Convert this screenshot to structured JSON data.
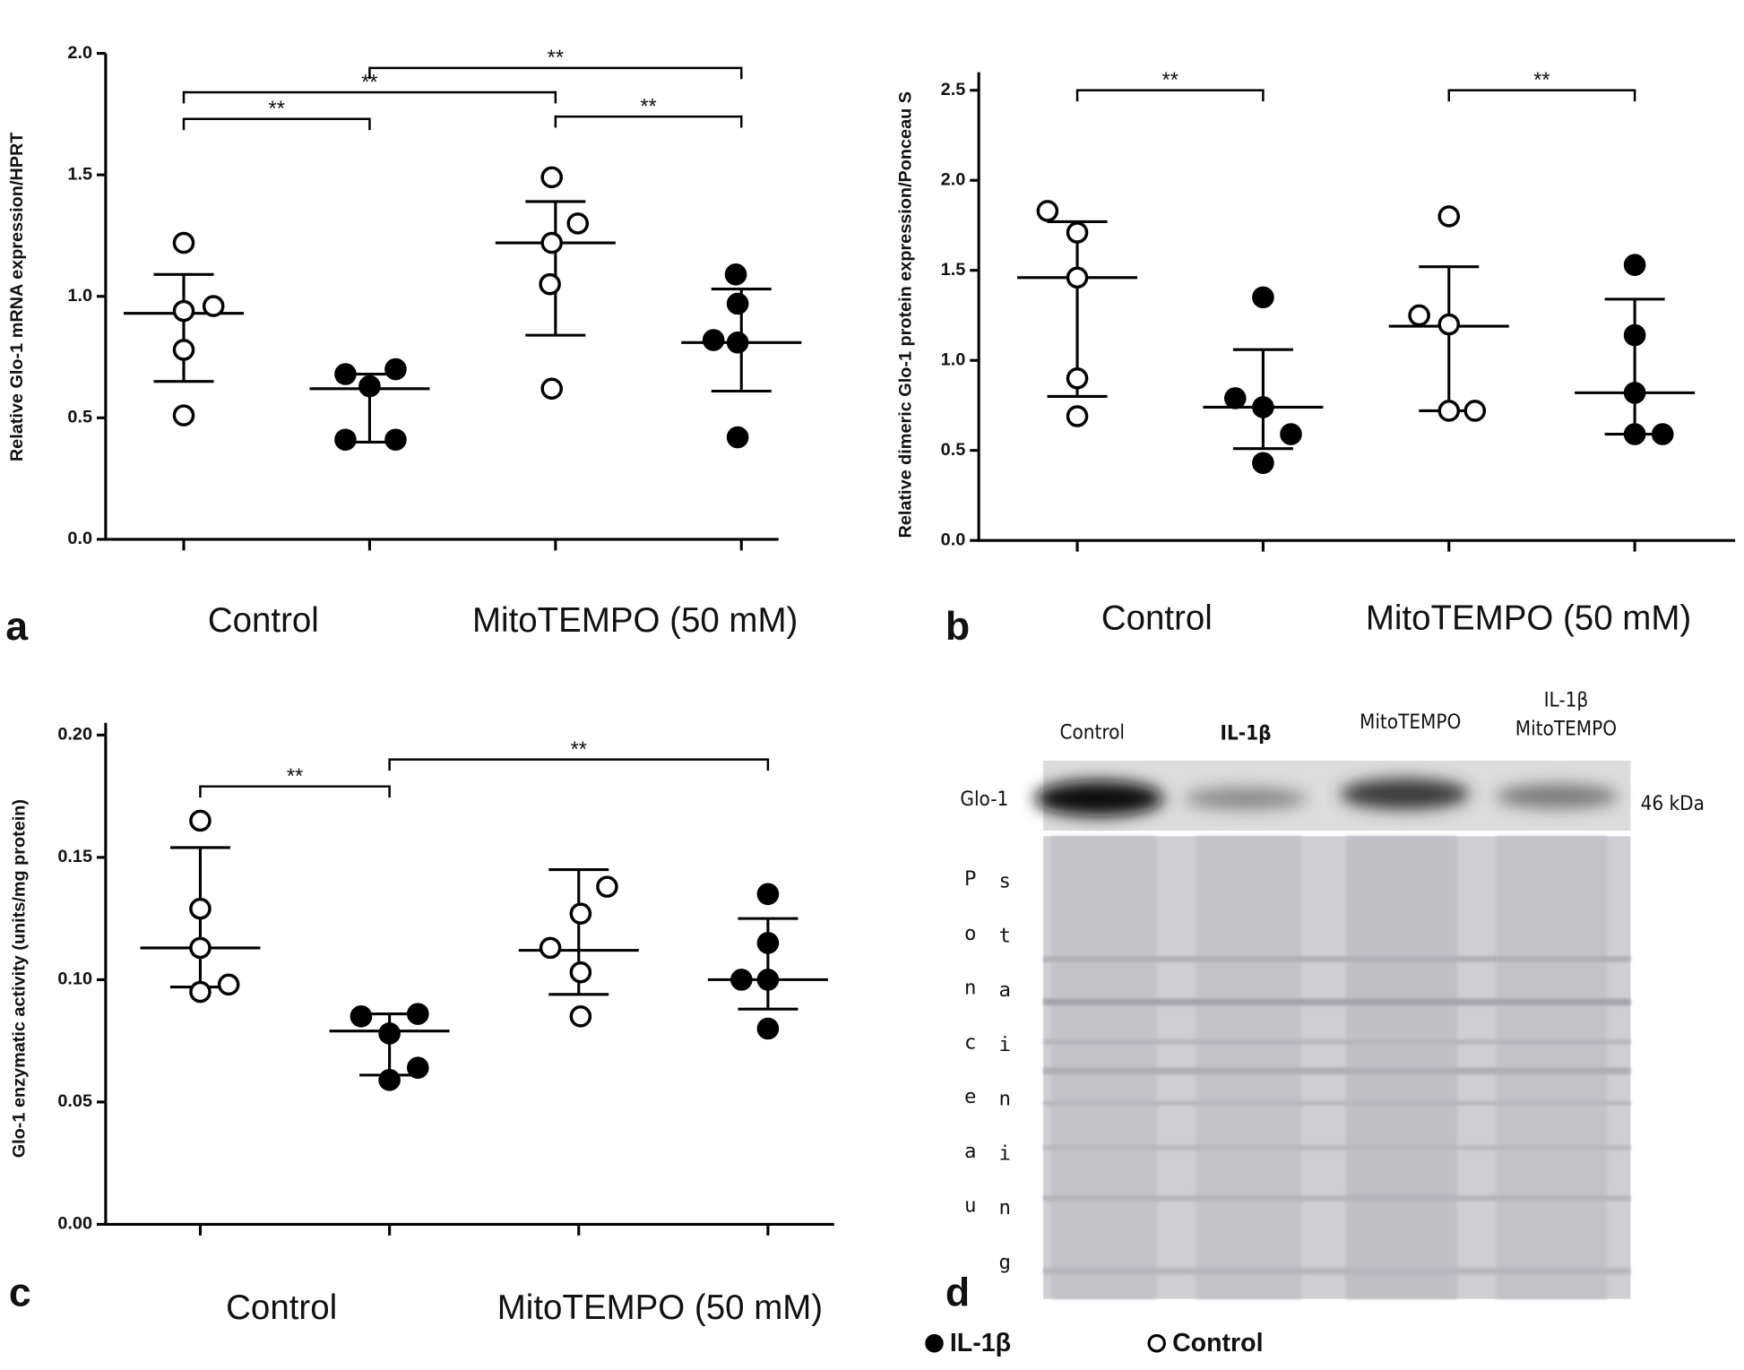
{
  "chart_data": [
    {
      "type": "scatter",
      "panel": "a",
      "y_label": "Relative Glo-1 mRNA expression/HPRT",
      "group_labels": [
        "Control",
        "MitoTEMPO (50 mM)"
      ],
      "xlim": [
        0.58,
        4.2
      ],
      "ylim": [
        0,
        2
      ],
      "yticks": [
        {
          "value": 0,
          "label": "0.0"
        },
        0.5,
        {
          "value": 1,
          "label": "1.0"
        },
        1.5,
        {
          "value": 2,
          "label": "2.0"
        }
      ],
      "series": [
        {
          "marker": "open",
          "color": "#000000",
          "groups": [
            {
              "x": 1,
              "points_x": [
                1.0,
                1.16,
                1.0,
                1.0,
                1.0
              ],
              "values": [
                1.22,
                0.96,
                0.94,
                0.78,
                0.51
              ],
              "mean": 0.93,
              "upper": 1.09,
              "lower": 0.65
            },
            {
              "x": 3,
              "points_x": [
                2.98,
                3.12,
                2.98,
                2.97,
                2.98
              ],
              "values": [
                1.49,
                1.3,
                1.22,
                1.05,
                0.62
              ],
              "mean": 1.22,
              "upper": 1.39,
              "lower": 0.84
            }
          ]
        },
        {
          "marker": "filled",
          "color": "#000000",
          "groups": [
            {
              "x": 2,
              "points_x": [
                1.87,
                2.14,
                2.0,
                1.87,
                2.14
              ],
              "values": [
                0.68,
                0.7,
                0.63,
                0.41,
                0.41
              ],
              "mean": 0.62,
              "upper": 0.68,
              "lower": 0.4
            },
            {
              "x": 4,
              "points_x": [
                3.97,
                3.98,
                3.85,
                3.98,
                3.98
              ],
              "values": [
                1.09,
                0.97,
                0.82,
                0.81,
                0.42
              ],
              "mean": 0.81,
              "upper": 1.03,
              "lower": 0.61
            }
          ]
        }
      ],
      "significance": [
        {
          "from": 1,
          "to": 2,
          "y": 1.73,
          "label": "**"
        },
        {
          "from": 1,
          "to": 3,
          "y": 1.84,
          "label": "**"
        },
        {
          "from": 2,
          "to": 4,
          "y": 1.94,
          "label": "**"
        },
        {
          "from": 3,
          "to": 4,
          "y": 1.74,
          "label": "**"
        }
      ]
    },
    {
      "type": "scatter",
      "panel": "b",
      "y_label": "Relative dimeric Glo-1 protein expression/Ponceau S",
      "group_labels": [
        "Control",
        "MitoTEMPO (50 mM)"
      ],
      "xlim": [
        0.47,
        4.54
      ],
      "ylim": [
        0,
        2.6
      ],
      "yticks": [
        {
          "value": 0,
          "label": "0.0"
        },
        0.5,
        {
          "value": 1,
          "label": "1.0"
        },
        1.5,
        {
          "value": 2,
          "label": "2.0"
        },
        2.5
      ],
      "series": [
        {
          "marker": "open",
          "color": "#000000",
          "groups": [
            {
              "x": 1,
              "points_x": [
                0.84,
                1.0,
                1.0,
                1.0,
                1.0
              ],
              "values": [
                1.83,
                1.71,
                1.46,
                0.9,
                0.69
              ],
              "mean": 1.46,
              "upper": 1.77,
              "lower": 0.8
            },
            {
              "x": 3,
              "points_x": [
                3.0,
                2.84,
                3.0,
                3.0,
                3.14
              ],
              "values": [
                1.8,
                1.25,
                1.2,
                0.72,
                0.72
              ],
              "mean": 1.19,
              "upper": 1.52,
              "lower": 0.72
            }
          ]
        },
        {
          "marker": "filled",
          "color": "#000000",
          "groups": [
            {
              "x": 2,
              "points_x": [
                2.0,
                1.85,
                2.0,
                2.15,
                2.0
              ],
              "values": [
                1.35,
                0.79,
                0.74,
                0.59,
                0.43
              ],
              "mean": 0.74,
              "upper": 1.06,
              "lower": 0.51
            },
            {
              "x": 4,
              "points_x": [
                4.0,
                4.0,
                4.0,
                4.0,
                4.15
              ],
              "values": [
                1.53,
                1.14,
                0.82,
                0.59,
                0.59
              ],
              "mean": 0.82,
              "upper": 1.34,
              "lower": 0.59
            }
          ]
        }
      ],
      "significance": [
        {
          "from": 1,
          "to": 2,
          "y": 2.5,
          "label": "**"
        },
        {
          "from": 3,
          "to": 4,
          "y": 2.5,
          "label": "**"
        }
      ]
    },
    {
      "type": "scatter",
      "panel": "c",
      "y_label": "Glo-1 enzymatic activity (units/mg protein)",
      "group_labels": [
        "Control",
        "MitoTEMPO (50 mM)"
      ],
      "xlim": [
        0.5,
        4.35
      ],
      "ylim": [
        0,
        0.205
      ],
      "yticks": [
        {
          "value": 0,
          "label": "0.00"
        },
        {
          "value": 0.05,
          "label": "0.05"
        },
        {
          "value": 0.1,
          "label": "0.10"
        },
        {
          "value": 0.15,
          "label": "0.15"
        },
        {
          "value": 0.2,
          "label": "0.20"
        }
      ],
      "series": [
        {
          "marker": "open",
          "color": "#000000",
          "groups": [
            {
              "x": 1,
              "points_x": [
                1.0,
                1.0,
                1.0,
                1.0,
                1.15
              ],
              "values": [
                0.165,
                0.129,
                0.113,
                0.095,
                0.098
              ],
              "mean": 0.113,
              "upper": 0.154,
              "lower": 0.097
            },
            {
              "x": 3,
              "points_x": [
                3.15,
                3.01,
                2.85,
                3.01,
                3.01
              ],
              "values": [
                0.138,
                0.127,
                0.113,
                0.103,
                0.085
              ],
              "mean": 0.112,
              "upper": 0.145,
              "lower": 0.094
            }
          ]
        },
        {
          "marker": "filled",
          "color": "#000000",
          "groups": [
            {
              "x": 2,
              "points_x": [
                1.85,
                2.15,
                2.0,
                2.15,
                2.0
              ],
              "values": [
                0.085,
                0.086,
                0.078,
                0.064,
                0.059
              ],
              "mean": 0.079,
              "upper": 0.086,
              "lower": 0.061
            },
            {
              "x": 4,
              "points_x": [
                4.0,
                4.0,
                3.86,
                4.0,
                4.0
              ],
              "values": [
                0.135,
                0.115,
                0.1,
                0.1,
                0.08
              ],
              "mean": 0.1,
              "upper": 0.125,
              "lower": 0.088
            }
          ]
        }
      ],
      "significance": [
        {
          "from": 1,
          "to": 2,
          "y": 0.179,
          "label": "**"
        },
        {
          "from": 2,
          "to": 4,
          "y": 0.19,
          "label": "**"
        }
      ]
    }
  ],
  "blot": {
    "panel": "d",
    "lanes": [
      [
        "Control"
      ],
      [
        "IL-1β"
      ],
      [
        "MitoTEMPO"
      ],
      [
        "IL-1β",
        "MitoTEMPO"
      ]
    ],
    "band_label": "Glo-1",
    "size_label": "46 kDa",
    "stain_label": [
      "Ponceau",
      "staining"
    ]
  },
  "legend": [
    {
      "name": "IL-1β",
      "marker": "filled"
    },
    {
      "name": "Control",
      "marker": "open"
    }
  ]
}
